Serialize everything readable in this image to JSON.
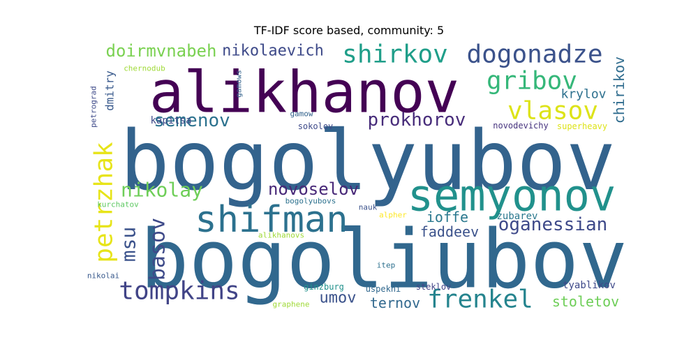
{
  "chart_data": {
    "type": "wordcloud",
    "title": "TF-IDF score based, community: 5",
    "words": [
      {
        "text": "bogolyubov",
        "color": "#33638d"
      },
      {
        "text": "bogoliubov",
        "color": "#31688e"
      },
      {
        "text": "alikhanov",
        "color": "#440154"
      },
      {
        "text": "semyonov",
        "color": "#21918c"
      },
      {
        "text": "shifman",
        "color": "#2c718e"
      },
      {
        "text": "dogonadze",
        "color": "#3b528b"
      },
      {
        "text": "shirkov",
        "color": "#1f9e89"
      },
      {
        "text": "frenkel",
        "color": "#25848e"
      },
      {
        "text": "gribov",
        "color": "#35b779"
      },
      {
        "text": "vlasov",
        "color": "#dde318"
      },
      {
        "text": "petrzhak",
        "color": "#e7e419"
      },
      {
        "text": "tompkins",
        "color": "#414487"
      },
      {
        "text": "oganessian",
        "color": "#3e4989"
      },
      {
        "text": "basov",
        "color": "#3e4a89"
      },
      {
        "text": "nikolay",
        "color": "#6ece58"
      },
      {
        "text": "msu",
        "color": "#3b528b"
      },
      {
        "text": "prokhorov",
        "color": "#472c7a"
      },
      {
        "text": "semenov",
        "color": "#2c728e"
      },
      {
        "text": "novoselov",
        "color": "#482878"
      },
      {
        "text": "doirmvnabeh",
        "color": "#7ad151"
      },
      {
        "text": "nikolaevich",
        "color": "#3e4a89"
      },
      {
        "text": "umov",
        "color": "#3b528b"
      },
      {
        "text": "stoletov",
        "color": "#6ece58"
      },
      {
        "text": "ioffe",
        "color": "#2a788e"
      },
      {
        "text": "chirikov",
        "color": "#2f6c8e"
      },
      {
        "text": "faddeev",
        "color": "#3b528b"
      },
      {
        "text": "ternov",
        "color": "#31688e"
      },
      {
        "text": "krylov",
        "color": "#2d708e"
      },
      {
        "text": "dmitry",
        "color": "#38598c"
      },
      {
        "text": "tyablikov",
        "color": "#3e4989"
      },
      {
        "text": "zubarev",
        "color": "#2a788e"
      },
      {
        "text": "kapitsa",
        "color": "#3e4a89"
      },
      {
        "text": "sokolov",
        "color": "#3e4a89"
      },
      {
        "text": "novodevichy",
        "color": "#46337e"
      },
      {
        "text": "superheavy",
        "color": "#dde318"
      },
      {
        "text": "chernodub",
        "color": "#a0da39"
      },
      {
        "text": "gamow",
        "color": "#33638d"
      },
      {
        "text": "gamows",
        "color": "#33638d"
      },
      {
        "text": "petrograd",
        "color": "#3e4a89"
      },
      {
        "text": "kurchatov",
        "color": "#5ec962"
      },
      {
        "text": "bogolyubovs",
        "color": "#2c718e"
      },
      {
        "text": "nauk",
        "color": "#3b528b"
      },
      {
        "text": "alpher",
        "color": "#fde725"
      },
      {
        "text": "alikhanovs",
        "color": "#a0da39"
      },
      {
        "text": "itep",
        "color": "#2d708e"
      },
      {
        "text": "nikolai",
        "color": "#38598c"
      },
      {
        "text": "ginzburg",
        "color": "#21918c"
      },
      {
        "text": "uspekhi",
        "color": "#31688e"
      },
      {
        "text": "steklov",
        "color": "#414487"
      },
      {
        "text": "graphene",
        "color": "#a0da39"
      }
    ]
  }
}
